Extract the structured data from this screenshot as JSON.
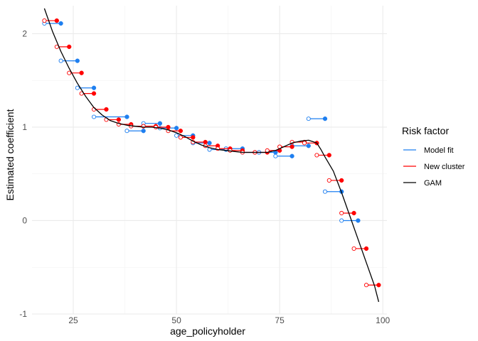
{
  "chart_data": {
    "type": "line",
    "xlabel": "age_policyholder",
    "ylabel": "Estimated coefficient",
    "xlim": [
      15,
      101
    ],
    "ylim": [
      -1,
      2.3
    ],
    "x_ticks": [
      25,
      50,
      75,
      100
    ],
    "y_ticks": [
      -1,
      0,
      1,
      2
    ],
    "x_tick_labels": [
      "25",
      "50",
      "75",
      "100"
    ],
    "y_tick_labels": [
      "-1",
      "0",
      "1",
      "2"
    ],
    "grid": true,
    "legend": {
      "title": "Risk factor",
      "position": "right",
      "entries": [
        {
          "label": "Model fit",
          "color": "#1e7ff0"
        },
        {
          "label": "New cluster",
          "color": "#ff0000"
        },
        {
          "label": "GAM",
          "color": "#000000"
        }
      ]
    },
    "series": [
      {
        "name": "Model fit",
        "color": "#1e7ff0",
        "segments": [
          {
            "x_start": 18,
            "x_end": 22,
            "y": 2.11
          },
          {
            "x_start": 22,
            "x_end": 26,
            "y": 1.71
          },
          {
            "x_start": 26,
            "x_end": 30,
            "y": 1.42
          },
          {
            "x_start": 30,
            "x_end": 38,
            "y": 1.11
          },
          {
            "x_start": 38,
            "x_end": 42,
            "y": 0.96
          },
          {
            "x_start": 42,
            "x_end": 46,
            "y": 1.04
          },
          {
            "x_start": 46,
            "x_end": 50,
            "y": 0.99
          },
          {
            "x_start": 50,
            "x_end": 54,
            "y": 0.91
          },
          {
            "x_start": 54,
            "x_end": 58,
            "y": 0.83
          },
          {
            "x_start": 58,
            "x_end": 62,
            "y": 0.76
          },
          {
            "x_start": 62,
            "x_end": 66,
            "y": 0.77
          },
          {
            "x_start": 66,
            "x_end": 70,
            "y": 0.73
          },
          {
            "x_start": 70,
            "x_end": 74,
            "y": 0.73
          },
          {
            "x_start": 74,
            "x_end": 78,
            "y": 0.69
          },
          {
            "x_start": 78,
            "x_end": 82,
            "y": 0.8
          },
          {
            "x_start": 82,
            "x_end": 86,
            "y": 1.09
          },
          {
            "x_start": 86,
            "x_end": 90,
            "y": 0.31
          },
          {
            "x_start": 90,
            "x_end": 94,
            "y": 0.0
          }
        ]
      },
      {
        "name": "New cluster",
        "color": "#ff0000",
        "segments": [
          {
            "x_start": 18,
            "x_end": 21,
            "y": 2.14
          },
          {
            "x_start": 21,
            "x_end": 24,
            "y": 1.86
          },
          {
            "x_start": 24,
            "x_end": 27,
            "y": 1.58
          },
          {
            "x_start": 27,
            "x_end": 30,
            "y": 1.36
          },
          {
            "x_start": 30,
            "x_end": 33,
            "y": 1.19
          },
          {
            "x_start": 33,
            "x_end": 36,
            "y": 1.08
          },
          {
            "x_start": 36,
            "x_end": 39,
            "y": 1.03
          },
          {
            "x_start": 39,
            "x_end": 42,
            "y": 1.01
          },
          {
            "x_start": 42,
            "x_end": 45,
            "y": 1.01
          },
          {
            "x_start": 45,
            "x_end": 48,
            "y": 1.0
          },
          {
            "x_start": 48,
            "x_end": 51,
            "y": 0.96
          },
          {
            "x_start": 51,
            "x_end": 54,
            "y": 0.89
          },
          {
            "x_start": 54,
            "x_end": 57,
            "y": 0.84
          },
          {
            "x_start": 57,
            "x_end": 60,
            "y": 0.8
          },
          {
            "x_start": 60,
            "x_end": 63,
            "y": 0.77
          },
          {
            "x_start": 63,
            "x_end": 66,
            "y": 0.75
          },
          {
            "x_start": 66,
            "x_end": 69,
            "y": 0.73
          },
          {
            "x_start": 69,
            "x_end": 72,
            "y": 0.73
          },
          {
            "x_start": 72,
            "x_end": 75,
            "y": 0.75
          },
          {
            "x_start": 75,
            "x_end": 78,
            "y": 0.79
          },
          {
            "x_start": 78,
            "x_end": 81,
            "y": 0.84
          },
          {
            "x_start": 81,
            "x_end": 84,
            "y": 0.83
          },
          {
            "x_start": 84,
            "x_end": 87,
            "y": 0.7
          },
          {
            "x_start": 87,
            "x_end": 90,
            "y": 0.43
          },
          {
            "x_start": 90,
            "x_end": 93,
            "y": 0.08
          },
          {
            "x_start": 93,
            "x_end": 96,
            "y": -0.3
          },
          {
            "x_start": 96,
            "x_end": 99,
            "y": -0.69
          }
        ]
      },
      {
        "name": "GAM",
        "color": "#000000",
        "x": [
          18,
          20,
          22,
          24,
          26,
          28,
          30,
          32,
          34,
          36,
          38,
          40,
          42,
          44,
          46,
          48,
          50,
          52,
          54,
          56,
          58,
          60,
          62,
          64,
          66,
          68,
          70,
          72,
          74,
          76,
          78,
          80,
          82,
          84,
          85,
          86,
          88,
          90,
          92,
          94,
          96,
          98,
          99
        ],
        "y": [
          2.27,
          2.02,
          1.81,
          1.63,
          1.47,
          1.33,
          1.21,
          1.13,
          1.07,
          1.04,
          1.02,
          1.01,
          1.0,
          1.0,
          0.99,
          0.97,
          0.94,
          0.9,
          0.85,
          0.81,
          0.78,
          0.76,
          0.75,
          0.74,
          0.73,
          0.73,
          0.73,
          0.73,
          0.75,
          0.79,
          0.83,
          0.85,
          0.86,
          0.83,
          0.76,
          0.68,
          0.53,
          0.3,
          0.05,
          -0.2,
          -0.45,
          -0.7,
          -0.87
        ]
      }
    ]
  }
}
